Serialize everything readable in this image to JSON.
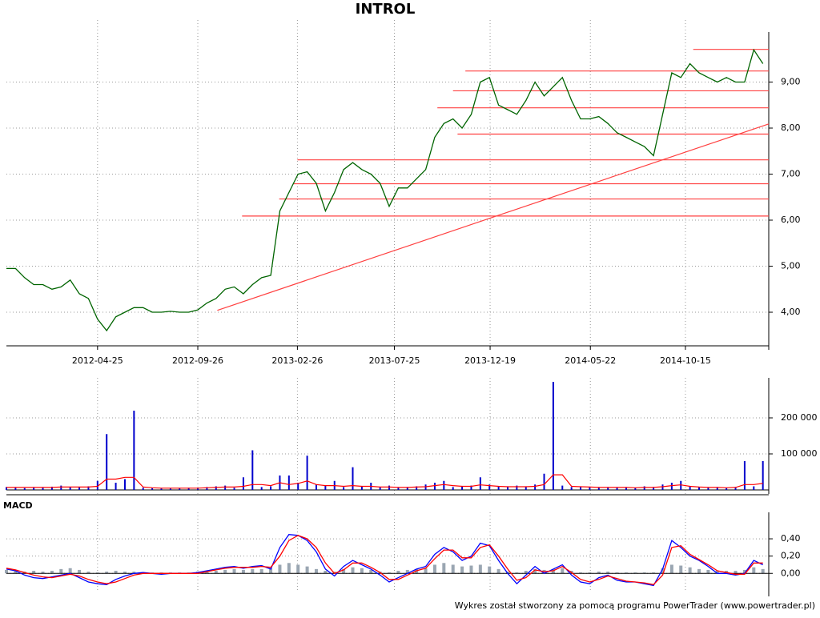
{
  "chart_data": [
    {
      "type": "line",
      "title": "INTROL",
      "x": [
        "2011-12-07",
        "2011-12-21",
        "2012-01-04",
        "2012-01-18",
        "2012-02-01",
        "2012-02-15",
        "2012-02-29",
        "2012-03-14",
        "2012-03-28",
        "2012-04-11",
        "2012-04-25",
        "2012-05-09",
        "2012-05-23",
        "2012-06-06",
        "2012-06-20",
        "2012-07-04",
        "2012-07-18",
        "2012-08-01",
        "2012-08-15",
        "2012-08-29",
        "2012-09-12",
        "2012-09-26",
        "2012-10-10",
        "2012-10-24",
        "2012-11-07",
        "2012-11-21",
        "2012-12-05",
        "2012-12-19",
        "2013-01-02",
        "2013-01-16",
        "2013-01-30",
        "2013-02-13",
        "2013-02-27",
        "2013-03-13",
        "2013-03-27",
        "2013-04-10",
        "2013-04-24",
        "2013-05-08",
        "2013-05-22",
        "2013-06-05",
        "2013-06-19",
        "2013-07-03",
        "2013-07-17",
        "2013-07-31",
        "2013-08-14",
        "2013-08-28",
        "2013-09-11",
        "2013-09-25",
        "2013-10-09",
        "2013-10-23",
        "2013-11-06",
        "2013-11-20",
        "2013-12-04",
        "2013-12-18",
        "2014-01-01",
        "2014-01-15",
        "2014-01-29",
        "2014-02-12",
        "2014-02-26",
        "2014-03-12",
        "2014-03-26",
        "2014-04-09",
        "2014-04-23",
        "2014-05-07",
        "2014-05-21",
        "2014-06-04",
        "2014-06-18",
        "2014-07-02",
        "2014-07-16",
        "2014-07-30",
        "2014-08-13",
        "2014-08-27",
        "2014-09-10",
        "2014-09-24",
        "2014-10-08",
        "2014-10-22",
        "2014-11-05",
        "2014-11-19",
        "2014-12-03",
        "2014-12-17",
        "2014-12-31",
        "2015-01-14",
        "2015-01-28",
        "2015-02-11"
      ],
      "values": [
        4.95,
        4.95,
        4.75,
        4.6,
        4.6,
        4.5,
        4.55,
        4.7,
        4.4,
        4.3,
        3.85,
        3.6,
        3.9,
        4.0,
        4.1,
        4.1,
        4.0,
        4.0,
        4.02,
        4.0,
        4.0,
        4.05,
        4.2,
        4.3,
        4.5,
        4.55,
        4.4,
        4.6,
        4.75,
        4.8,
        6.2,
        6.6,
        7.0,
        7.05,
        6.8,
        6.2,
        6.6,
        7.1,
        7.25,
        7.1,
        7.0,
        6.8,
        6.3,
        6.7,
        6.7,
        6.9,
        7.1,
        7.8,
        8.1,
        8.2,
        8.0,
        8.3,
        9.0,
        9.1,
        8.5,
        8.4,
        8.3,
        8.6,
        9.0,
        8.7,
        8.9,
        9.1,
        8.6,
        8.2,
        8.2,
        8.25,
        8.1,
        7.9,
        7.8,
        7.7,
        7.6,
        7.4,
        8.3,
        9.2,
        9.1,
        9.4,
        9.2,
        9.1,
        9.0,
        9.1,
        9.0,
        9.0,
        9.7,
        9.4
      ],
      "color": "#006400",
      "xlim": [
        "2011-12-07",
        "2015-02-20"
      ],
      "xticks": [
        "2012-04-25",
        "2012-09-26",
        "2013-02-26",
        "2013-07-25",
        "2013-12-19",
        "2014-05-22",
        "2014-10-15"
      ],
      "ylim": [
        3.27,
        10.0
      ],
      "yticks": [
        {
          "value": 4,
          "label": "4,00"
        },
        {
          "value": 5,
          "label": "5,00"
        },
        {
          "value": 6,
          "label": "6,00"
        },
        {
          "value": 7,
          "label": "7,00"
        },
        {
          "value": 8,
          "label": "8,00"
        },
        {
          "value": 9,
          "label": "9,00"
        }
      ],
      "grid": true,
      "levels": [
        {
          "from": "2014-10-27",
          "value": 9.71
        },
        {
          "from": "2013-11-11",
          "value": 9.24
        },
        {
          "from": "2013-10-23",
          "value": 8.81
        },
        {
          "from": "2013-09-29",
          "value": 8.44
        },
        {
          "from": "2013-10-30",
          "value": 7.87
        },
        {
          "from": "2013-02-26",
          "value": 7.31
        },
        {
          "from": "2013-02-20",
          "value": 6.79
        },
        {
          "from": "2013-01-29",
          "value": 6.46
        },
        {
          "from": "2012-12-03",
          "value": 6.09
        }
      ],
      "level_color": "#ff4040",
      "trendline": {
        "x": [
          "2012-10-26",
          "2015-02-20"
        ],
        "y": [
          4.04,
          8.09
        ]
      }
    },
    {
      "type": "bar",
      "values": [
        8000,
        6000,
        5000,
        7000,
        6000,
        9000,
        12000,
        8000,
        7000,
        10000,
        25000,
        155000,
        20000,
        30000,
        220000,
        6000,
        5000,
        4000,
        4000,
        5000,
        6000,
        5000,
        8000,
        10000,
        12000,
        6000,
        35000,
        110000,
        8000,
        10000,
        40000,
        40000,
        20000,
        95000,
        15000,
        12000,
        25000,
        8000,
        63000,
        10000,
        20000,
        8000,
        12000,
        6000,
        8000,
        10000,
        15000,
        20000,
        25000,
        8000,
        10000,
        12000,
        35000,
        15000,
        10000,
        8000,
        12000,
        10000,
        15000,
        45000,
        300000,
        12000,
        8000,
        10000,
        8000,
        6000,
        8000,
        7000,
        8000,
        6000,
        10000,
        8000,
        15000,
        20000,
        25000,
        10000,
        8000,
        6000,
        8000,
        6000,
        8000,
        80000,
        10000,
        80000
      ],
      "color": "#0000cc",
      "ma": {
        "values": [
          7000,
          7000,
          7000,
          7000,
          7000,
          7000,
          8000,
          8000,
          8000,
          8000,
          10000,
          30000,
          30000,
          35000,
          35000,
          8000,
          6000,
          5000,
          5000,
          5000,
          5000,
          5000,
          6000,
          7000,
          8000,
          8000,
          10000,
          15000,
          15000,
          12000,
          20000,
          15000,
          18000,
          25000,
          15000,
          12000,
          12000,
          10000,
          12000,
          10000,
          10000,
          8000,
          8000,
          7000,
          7000,
          8000,
          9000,
          12000,
          15000,
          12000,
          10000,
          10000,
          14000,
          12000,
          10000,
          9000,
          9000,
          9000,
          10000,
          15000,
          42000,
          42000,
          10000,
          9000,
          8000,
          7000,
          7000,
          7000,
          7000,
          6000,
          7000,
          7000,
          9000,
          12000,
          14000,
          10000,
          8000,
          7000,
          7000,
          6000,
          7000,
          15000,
          15000,
          18000
        ],
        "color": "#ff0000"
      },
      "ylim": [
        0,
        300000
      ],
      "yticks": [
        {
          "value": 100000,
          "label": "100 000"
        },
        {
          "value": 200000,
          "label": "200 000"
        }
      ]
    },
    {
      "type": "line",
      "title": "MACD",
      "series": [
        {
          "color": "#0000ff",
          "values": [
            0.05,
            0.03,
            -0.02,
            -0.05,
            -0.06,
            -0.04,
            -0.02,
            0.0,
            -0.05,
            -0.1,
            -0.12,
            -0.13,
            -0.07,
            -0.03,
            0.0,
            0.01,
            0.0,
            -0.01,
            0.0,
            0.0,
            0.0,
            0.01,
            0.03,
            0.05,
            0.07,
            0.08,
            0.06,
            0.08,
            0.09,
            0.05,
            0.3,
            0.45,
            0.44,
            0.38,
            0.25,
            0.05,
            -0.03,
            0.08,
            0.15,
            0.1,
            0.05,
            -0.02,
            -0.1,
            -0.05,
            0.0,
            0.05,
            0.08,
            0.22,
            0.3,
            0.25,
            0.15,
            0.2,
            0.35,
            0.32,
            0.15,
            0.0,
            -0.12,
            -0.02,
            0.08,
            0.0,
            0.05,
            0.1,
            -0.02,
            -0.1,
            -0.12,
            -0.05,
            -0.02,
            -0.08,
            -0.1,
            -0.1,
            -0.12,
            -0.14,
            0.05,
            0.38,
            0.3,
            0.2,
            0.15,
            0.08,
            0.0,
            0.0,
            -0.02,
            0.0,
            0.15,
            0.1
          ]
        },
        {
          "color": "#ff0000",
          "values": [
            0.06,
            0.04,
            0.01,
            -0.02,
            -0.04,
            -0.05,
            -0.03,
            -0.01,
            -0.03,
            -0.07,
            -0.1,
            -0.12,
            -0.1,
            -0.06,
            -0.02,
            0.0,
            0.0,
            0.0,
            0.0,
            0.0,
            0.0,
            0.0,
            0.02,
            0.04,
            0.06,
            0.07,
            0.07,
            0.07,
            0.08,
            0.07,
            0.2,
            0.38,
            0.44,
            0.4,
            0.3,
            0.12,
            0.0,
            0.04,
            0.12,
            0.12,
            0.07,
            0.01,
            -0.07,
            -0.07,
            -0.02,
            0.03,
            0.06,
            0.17,
            0.27,
            0.27,
            0.18,
            0.18,
            0.3,
            0.33,
            0.2,
            0.05,
            -0.08,
            -0.05,
            0.04,
            0.02,
            0.03,
            0.08,
            0.01,
            -0.07,
            -0.1,
            -0.07,
            -0.03,
            -0.06,
            -0.09,
            -0.1,
            -0.11,
            -0.13,
            -0.02,
            0.3,
            0.32,
            0.22,
            0.16,
            0.1,
            0.03,
            0.01,
            -0.01,
            -0.01,
            0.12,
            0.12
          ]
        }
      ],
      "histogram": {
        "color": "#9aa6b2",
        "values": [
          0.04,
          0.03,
          0.02,
          0.03,
          0.02,
          0.03,
          0.05,
          0.06,
          0.04,
          0.02,
          0.01,
          0.02,
          0.03,
          0.02,
          0.02,
          0.01,
          0.01,
          0.01,
          0.01,
          0.01,
          0.01,
          0.02,
          0.02,
          0.03,
          0.04,
          0.05,
          0.04,
          0.05,
          0.05,
          0.06,
          0.1,
          0.12,
          0.1,
          0.08,
          0.05,
          0.03,
          0.02,
          0.05,
          0.07,
          0.06,
          0.04,
          0.02,
          0.01,
          0.03,
          0.04,
          0.05,
          0.06,
          0.1,
          0.12,
          0.1,
          0.08,
          0.09,
          0.1,
          0.08,
          0.05,
          0.02,
          0.01,
          0.03,
          0.05,
          0.04,
          0.05,
          0.06,
          0.03,
          0.01,
          0.01,
          0.02,
          0.02,
          0.01,
          0.01,
          0.01,
          0.01,
          0.01,
          0.06,
          0.1,
          0.09,
          0.07,
          0.05,
          0.04,
          0.03,
          0.03,
          0.03,
          0.04,
          0.07,
          0.05
        ]
      },
      "ylim": [
        -0.22,
        0.66
      ],
      "yticks": [
        {
          "value": 0,
          "label": "0,00"
        },
        {
          "value": 0.2,
          "label": "0,20"
        },
        {
          "value": 0.4,
          "label": "0,40"
        }
      ]
    }
  ],
  "footer": "Wykres został stworzony za pomocą programu PowerTrader (www.powertrader.pl)"
}
